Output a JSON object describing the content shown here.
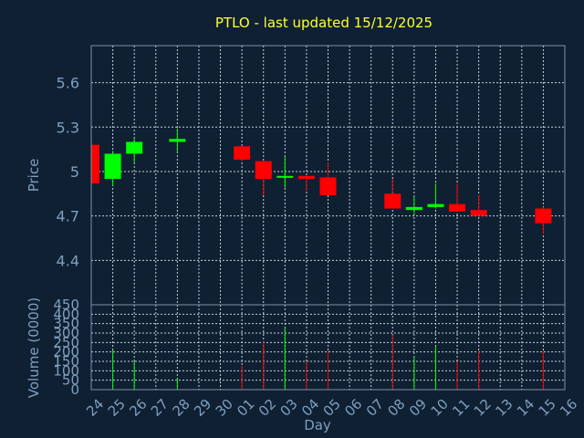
{
  "chart_data": {
    "type": "candlestick",
    "title": "PTLO - last updated 15/12/2025",
    "xlabel": "Day",
    "ylabel": "Price",
    "volume_label": "Volume (0000)",
    "x_ticks": [
      "24",
      "25",
      "26",
      "27",
      "28",
      "29",
      "30",
      "01",
      "02",
      "03",
      "04",
      "05",
      "06",
      "07",
      "08",
      "09",
      "10",
      "11",
      "12",
      "13",
      "14",
      "15",
      "16"
    ],
    "price_ticks": [
      "4.4",
      "4.7",
      "5",
      "5.3",
      "5.6"
    ],
    "volume_ticks": [
      "0",
      "50",
      "100",
      "150",
      "200",
      "250",
      "300",
      "350",
      "400",
      "450"
    ],
    "price_range": [
      4.1,
      5.85
    ],
    "volume_range": [
      0,
      450
    ],
    "up_color": "#00ff00",
    "down_color": "#ff0000",
    "candles": [
      {
        "day": "24",
        "open": 5.18,
        "high": 5.18,
        "low": 4.92,
        "close": 4.92,
        "volume": 180
      },
      {
        "day": "25",
        "open": 4.95,
        "high": 5.14,
        "low": 4.9,
        "close": 5.12,
        "volume": 210
      },
      {
        "day": "26",
        "open": 5.12,
        "high": 5.22,
        "low": 5.06,
        "close": 5.2,
        "volume": 150
      },
      {
        "day": "28",
        "open": 5.2,
        "high": 5.29,
        "low": 5.13,
        "close": 5.22,
        "volume": 60
      },
      {
        "day": "01",
        "open": 5.17,
        "high": 5.17,
        "low": 5.07,
        "close": 5.08,
        "volume": 125
      },
      {
        "day": "02",
        "open": 5.07,
        "high": 5.07,
        "low": 4.84,
        "close": 4.95,
        "volume": 255
      },
      {
        "day": "03",
        "open": 4.96,
        "high": 5.1,
        "low": 4.89,
        "close": 4.97,
        "volume": 325
      },
      {
        "day": "04",
        "open": 4.97,
        "high": 4.97,
        "low": 4.87,
        "close": 4.95,
        "volume": 150
      },
      {
        "day": "05",
        "open": 4.96,
        "high": 5.06,
        "low": 4.84,
        "close": 4.84,
        "volume": 205
      },
      {
        "day": "08",
        "open": 4.85,
        "high": 4.95,
        "low": 4.75,
        "close": 4.75,
        "volume": 290
      },
      {
        "day": "09",
        "open": 4.74,
        "high": 4.83,
        "low": 4.72,
        "close": 4.76,
        "volume": 170
      },
      {
        "day": "10",
        "open": 4.76,
        "high": 4.92,
        "low": 4.75,
        "close": 4.78,
        "volume": 230
      },
      {
        "day": "11",
        "open": 4.78,
        "high": 4.92,
        "low": 4.73,
        "close": 4.73,
        "volume": 150
      },
      {
        "day": "12",
        "open": 4.74,
        "high": 4.84,
        "low": 4.7,
        "close": 4.7,
        "volume": 205
      },
      {
        "day": "15",
        "open": 4.75,
        "high": 4.76,
        "low": 4.58,
        "close": 4.65,
        "volume": 205
      }
    ]
  }
}
